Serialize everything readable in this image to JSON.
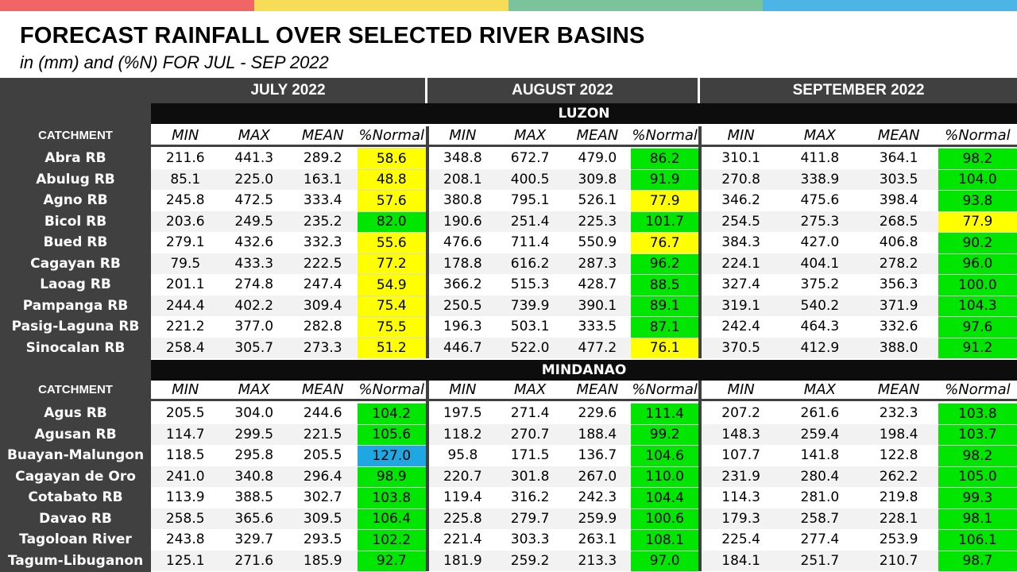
{
  "header_colors": [
    "#f06565",
    "#f6dc57",
    "#7bc39b",
    "#4db4e6"
  ],
  "title": "FORECAST RAINFALL OVER SELECTED RIVER BASINS",
  "subtitle": "in (mm) and (%N) FOR  JUL - SEP 2022",
  "months": [
    "JULY 2022",
    "AUGUST 2022",
    "SEPTEMBER 2022"
  ],
  "catchment_label": "CATCHMENT",
  "subheaders": [
    "MIN",
    "MAX",
    "MEAN",
    "%Normal"
  ],
  "status_colors": {
    "yellow": "#ffff00",
    "green": "#00e600",
    "blue": "#1ea7e0"
  },
  "sections": [
    {
      "name": "LUZON",
      "rows": [
        {
          "name": "Abra RB",
          "values": [
            [
              "211.6",
              "441.3",
              "289.2",
              "58.6"
            ],
            [
              "348.8",
              "672.7",
              "479.0",
              "86.2"
            ],
            [
              "310.1",
              "411.8",
              "364.1",
              "98.2"
            ]
          ],
          "colors": [
            "yellow",
            "green",
            "green"
          ]
        },
        {
          "name": "Abulug RB",
          "values": [
            [
              "85.1",
              "225.0",
              "163.1",
              "48.8"
            ],
            [
              "208.1",
              "400.5",
              "309.8",
              "91.9"
            ],
            [
              "270.8",
              "338.9",
              "303.5",
              "104.0"
            ]
          ],
          "colors": [
            "yellow",
            "green",
            "green"
          ]
        },
        {
          "name": "Agno RB",
          "values": [
            [
              "245.8",
              "472.5",
              "333.4",
              "57.6"
            ],
            [
              "380.8",
              "795.1",
              "526.1",
              "77.9"
            ],
            [
              "346.2",
              "475.6",
              "398.4",
              "93.8"
            ]
          ],
          "colors": [
            "yellow",
            "yellow",
            "green"
          ]
        },
        {
          "name": "Bicol RB",
          "values": [
            [
              "203.6",
              "249.5",
              "235.2",
              "82.0"
            ],
            [
              "190.6",
              "251.4",
              "225.3",
              "101.7"
            ],
            [
              "254.5",
              "275.3",
              "268.5",
              "77.9"
            ]
          ],
          "colors": [
            "green",
            "green",
            "yellow"
          ]
        },
        {
          "name": "Bued RB",
          "values": [
            [
              "279.1",
              "432.6",
              "332.3",
              "55.6"
            ],
            [
              "476.6",
              "711.4",
              "550.9",
              "76.7"
            ],
            [
              "384.3",
              "427.0",
              "406.8",
              "90.2"
            ]
          ],
          "colors": [
            "yellow",
            "yellow",
            "green"
          ]
        },
        {
          "name": "Cagayan RB",
          "values": [
            [
              "79.5",
              "433.3",
              "222.5",
              "77.2"
            ],
            [
              "178.8",
              "616.2",
              "287.3",
              "96.2"
            ],
            [
              "224.1",
              "404.1",
              "278.2",
              "96.0"
            ]
          ],
          "colors": [
            "yellow",
            "green",
            "green"
          ]
        },
        {
          "name": "Laoag RB",
          "values": [
            [
              "201.1",
              "274.8",
              "247.4",
              "54.9"
            ],
            [
              "366.2",
              "515.3",
              "428.7",
              "88.5"
            ],
            [
              "327.4",
              "375.2",
              "356.3",
              "100.0"
            ]
          ],
          "colors": [
            "yellow",
            "green",
            "green"
          ]
        },
        {
          "name": "Pampanga RB",
          "values": [
            [
              "244.4",
              "402.2",
              "309.4",
              "75.4"
            ],
            [
              "250.5",
              "739.9",
              "390.1",
              "89.1"
            ],
            [
              "319.1",
              "540.2",
              "371.9",
              "104.3"
            ]
          ],
          "colors": [
            "yellow",
            "green",
            "green"
          ]
        },
        {
          "name": "Pasig-Laguna RB",
          "values": [
            [
              "221.2",
              "377.0",
              "282.8",
              "75.5"
            ],
            [
              "196.3",
              "503.1",
              "333.5",
              "87.1"
            ],
            [
              "242.4",
              "464.3",
              "332.6",
              "97.6"
            ]
          ],
          "colors": [
            "yellow",
            "green",
            "green"
          ]
        },
        {
          "name": "Sinocalan RB",
          "values": [
            [
              "258.4",
              "305.7",
              "273.3",
              "51.2"
            ],
            [
              "446.7",
              "522.0",
              "477.2",
              "76.1"
            ],
            [
              "370.5",
              "412.9",
              "388.0",
              "91.2"
            ]
          ],
          "colors": [
            "yellow",
            "yellow",
            "green"
          ]
        }
      ]
    },
    {
      "name": "MINDANAO",
      "rows": [
        {
          "name": "Agus RB",
          "values": [
            [
              "205.5",
              "304.0",
              "244.6",
              "104.2"
            ],
            [
              "197.5",
              "271.4",
              "229.6",
              "111.4"
            ],
            [
              "207.2",
              "261.6",
              "232.3",
              "103.8"
            ]
          ],
          "colors": [
            "green",
            "green",
            "green"
          ]
        },
        {
          "name": "Agusan RB",
          "values": [
            [
              "114.7",
              "299.5",
              "221.5",
              "105.6"
            ],
            [
              "118.2",
              "270.7",
              "188.4",
              "99.2"
            ],
            [
              "148.3",
              "259.4",
              "198.4",
              "103.7"
            ]
          ],
          "colors": [
            "green",
            "green",
            "green"
          ]
        },
        {
          "name": "Buayan-Malungon",
          "values": [
            [
              "118.5",
              "295.8",
              "205.5",
              "127.0"
            ],
            [
              "95.8",
              "171.5",
              "136.7",
              "104.6"
            ],
            [
              "107.7",
              "141.8",
              "122.8",
              "98.2"
            ]
          ],
          "colors": [
            "blue",
            "green",
            "green"
          ]
        },
        {
          "name": "Cagayan de Oro",
          "values": [
            [
              "241.0",
              "340.8",
              "296.4",
              "98.9"
            ],
            [
              "220.7",
              "301.8",
              "267.0",
              "110.0"
            ],
            [
              "231.9",
              "280.4",
              "262.2",
              "105.0"
            ]
          ],
          "colors": [
            "green",
            "green",
            "green"
          ]
        },
        {
          "name": "Cotabato RB",
          "values": [
            [
              "113.9",
              "388.5",
              "302.7",
              "103.8"
            ],
            [
              "119.4",
              "316.2",
              "242.3",
              "104.4"
            ],
            [
              "114.3",
              "281.0",
              "219.8",
              "99.3"
            ]
          ],
          "colors": [
            "green",
            "green",
            "green"
          ]
        },
        {
          "name": "Davao RB",
          "values": [
            [
              "258.5",
              "365.6",
              "309.5",
              "106.4"
            ],
            [
              "225.8",
              "279.7",
              "259.9",
              "100.6"
            ],
            [
              "179.3",
              "258.7",
              "228.1",
              "98.1"
            ]
          ],
          "colors": [
            "green",
            "green",
            "green"
          ]
        },
        {
          "name": "Tagoloan River",
          "values": [
            [
              "243.8",
              "329.7",
              "293.5",
              "102.2"
            ],
            [
              "221.4",
              "303.3",
              "263.1",
              "108.1"
            ],
            [
              "225.4",
              "277.4",
              "253.9",
              "106.1"
            ]
          ],
          "colors": [
            "green",
            "green",
            "green"
          ]
        },
        {
          "name": "Tagum-Libuganon",
          "values": [
            [
              "125.1",
              "271.6",
              "185.9",
              "92.7"
            ],
            [
              "181.9",
              "259.2",
              "213.3",
              "97.0"
            ],
            [
              "184.1",
              "251.7",
              "210.7",
              "98.7"
            ]
          ],
          "colors": [
            "green",
            "green",
            "green"
          ]
        }
      ]
    }
  ]
}
